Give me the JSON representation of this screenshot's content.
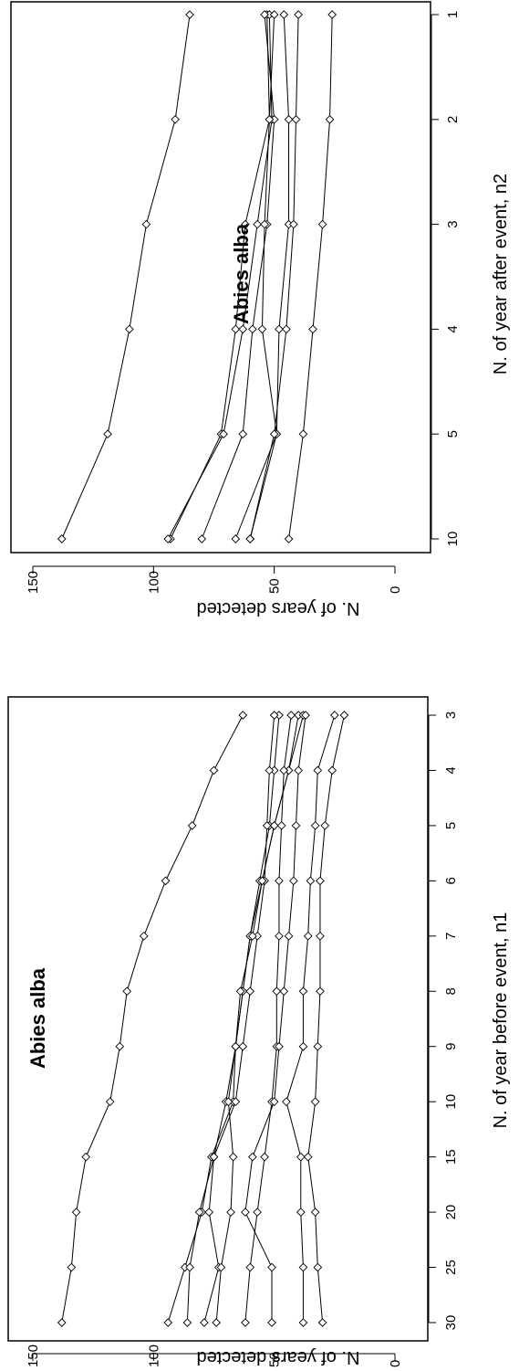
{
  "chart_data": [
    {
      "type": "line",
      "annotation": "Abies alba",
      "xlabel": "N. of year before event, n1",
      "ylabel": "N. of years detected",
      "categories": [
        "3",
        "4",
        "5",
        "6",
        "7",
        "8",
        "9",
        "10",
        "15",
        "20",
        "25",
        "30"
      ],
      "ylim": [
        0,
        150
      ],
      "yticks": [
        0,
        50,
        100,
        150
      ],
      "marker": "open-diamond",
      "series": [
        {
          "values": [
            63,
            75,
            84,
            95,
            104,
            111,
            114,
            118,
            128,
            132,
            134,
            138
          ]
        },
        {
          "values": [
            48,
            50,
            52,
            56,
            60,
            63,
            66,
            67,
            76,
            80,
            87,
            94
          ]
        },
        {
          "values": [
            50,
            52,
            53,
            54,
            57,
            60,
            63,
            66,
            75,
            81,
            85,
            86
          ]
        },
        {
          "values": [
            40,
            44,
            50,
            55,
            60,
            63,
            66,
            70,
            75,
            77,
            73,
            79
          ]
        },
        {
          "values": [
            38,
            44,
            50,
            55,
            59,
            64,
            66,
            69,
            67,
            68,
            72,
            74
          ]
        },
        {
          "values": [
            43,
            46,
            47,
            48,
            48,
            49,
            49,
            51,
            54,
            57,
            60,
            62
          ]
        },
        {
          "values": [
            37,
            40,
            41,
            42,
            44,
            46,
            48,
            50,
            59,
            62,
            51,
            51
          ]
        },
        {
          "values": [
            25,
            32,
            33,
            35,
            36,
            38,
            38,
            45,
            39,
            39,
            38,
            38
          ]
        },
        {
          "values": [
            21,
            26,
            29,
            31,
            31,
            31,
            32,
            33,
            36,
            33,
            32,
            30
          ]
        }
      ]
    },
    {
      "type": "line",
      "annotation": "Abies alba",
      "xlabel": "N. of year after event, n2",
      "ylabel": "N. of years detected",
      "categories": [
        "1",
        "2",
        "3",
        "4",
        "5",
        "10"
      ],
      "ylim": [
        0,
        150
      ],
      "yticks": [
        0,
        50,
        100,
        150
      ],
      "marker": "open-diamond",
      "series": [
        {
          "values": [
            85,
            91,
            103,
            110,
            119,
            138
          ]
        },
        {
          "values": [
            53,
            52,
            62,
            66,
            72,
            93
          ]
        },
        {
          "values": [
            52,
            51,
            57,
            63,
            71,
            94
          ]
        },
        {
          "values": [
            54,
            50,
            53,
            59,
            63,
            80
          ]
        },
        {
          "values": [
            50,
            52,
            54,
            55,
            49,
            66
          ]
        },
        {
          "values": [
            46,
            44,
            44,
            48,
            49,
            60
          ]
        },
        {
          "values": [
            40,
            41,
            42,
            45,
            50,
            60
          ]
        },
        {
          "values": [
            26,
            27,
            30,
            34,
            38,
            44
          ]
        }
      ]
    }
  ]
}
